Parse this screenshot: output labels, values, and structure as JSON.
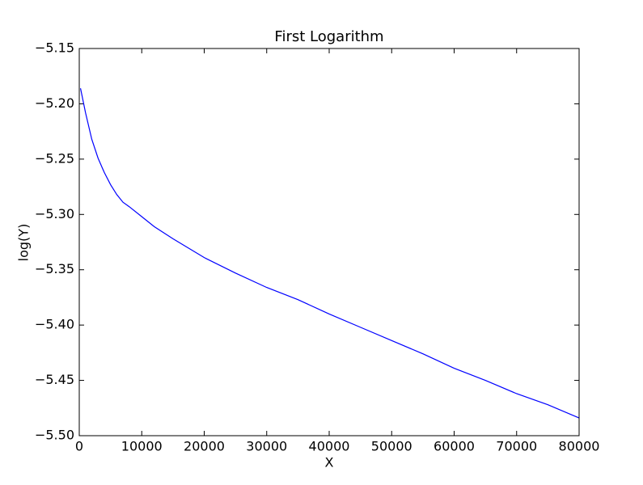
{
  "chart_data": {
    "type": "line",
    "title": "First Logarithm",
    "x_label": "X",
    "y_label": "log(Y)",
    "x": [
      200,
      1000,
      2000,
      3000,
      4000,
      5000,
      6000,
      7000,
      8000,
      10000,
      12000,
      15000,
      20000,
      25000,
      30000,
      35000,
      40000,
      45000,
      50000,
      55000,
      60000,
      65000,
      70000,
      75000,
      80000
    ],
    "series": [
      {
        "name": "log(Y)",
        "color": "#0000ff",
        "values": [
          -5.186,
          -5.208,
          -5.232,
          -5.249,
          -5.262,
          -5.273,
          -5.282,
          -5.289,
          -5.293,
          -5.302,
          -5.311,
          -5.322,
          -5.339,
          -5.353,
          -5.366,
          -5.377,
          -5.39,
          -5.402,
          -5.414,
          -5.426,
          -5.439,
          -5.45,
          -5.462,
          -5.472,
          -5.484
        ]
      }
    ],
    "xlim": [
      0,
      80000
    ],
    "xticks": [
      0,
      10000,
      20000,
      30000,
      40000,
      50000,
      60000,
      70000,
      80000
    ],
    "ylim": [
      -5.5,
      -5.15
    ],
    "yticks": [
      {
        "value": -5.5,
        "label": "−5.50"
      },
      {
        "value": -5.45,
        "label": "−5.45"
      },
      {
        "value": -5.4,
        "label": "−5.40"
      },
      {
        "value": -5.35,
        "label": "−5.35"
      },
      {
        "value": -5.3,
        "label": "−5.30"
      },
      {
        "value": -5.25,
        "label": "−5.25"
      },
      {
        "value": -5.2,
        "label": "−5.20"
      },
      {
        "value": -5.15,
        "label": "−5.15"
      }
    ],
    "grid": false
  }
}
